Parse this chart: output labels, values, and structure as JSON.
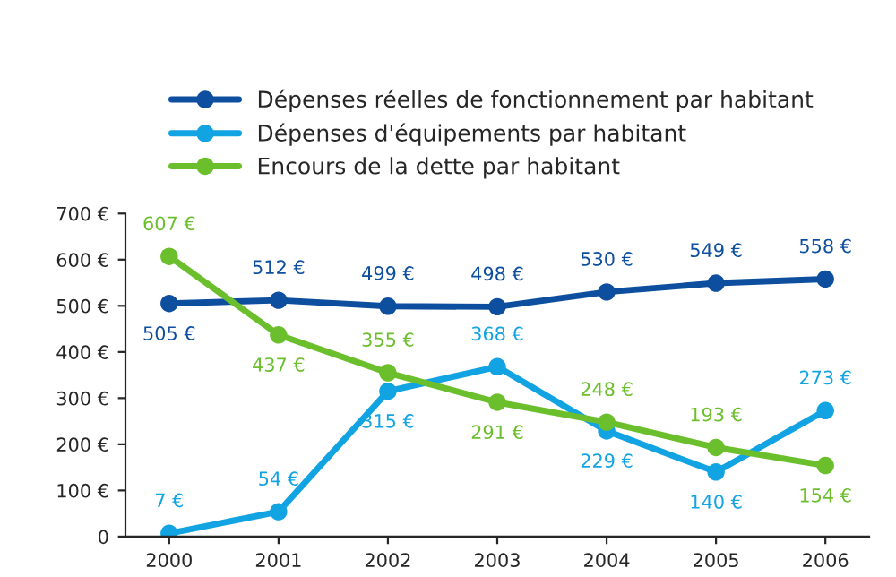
{
  "chart_data": {
    "type": "line",
    "categories": [
      "2000",
      "2001",
      "2002",
      "2003",
      "2004",
      "2005",
      "2006"
    ],
    "series": [
      {
        "name": "Dépenses réelles de fonctionnement par habitant",
        "color": "#0d4f9e",
        "values": [
          505,
          512,
          499,
          498,
          530,
          549,
          558
        ],
        "value_labels": [
          "505 €",
          "512 €",
          "499 €",
          "498 €",
          "530 €",
          "549 €",
          "558 €"
        ]
      },
      {
        "name": "Dépenses d'équipements par habitant",
        "color": "#12a3e3",
        "values": [
          7,
          54,
          315,
          368,
          229,
          140,
          273
        ],
        "value_labels": [
          "7 €",
          "54 €",
          "315 €",
          "368 €",
          "229 €",
          "140 €",
          "273 €"
        ]
      },
      {
        "name": "Encours de la dette par habitant",
        "color": "#6cbf2c",
        "values": [
          607,
          437,
          355,
          291,
          248,
          193,
          154
        ],
        "value_labels": [
          "607 €",
          "437 €",
          "355 €",
          "291 €",
          "248 €",
          "193 €",
          "154 €"
        ]
      }
    ],
    "ylim": [
      0,
      700
    ],
    "yticks": [
      {
        "value": 0,
        "label": "0"
      },
      {
        "value": 100,
        "label": "100 €"
      },
      {
        "value": 200,
        "label": "200 €"
      },
      {
        "value": 300,
        "label": "300 €"
      },
      {
        "value": 400,
        "label": "400 €"
      },
      {
        "value": 500,
        "label": "500 €"
      },
      {
        "value": 600,
        "label": "600 €"
      },
      {
        "value": 700,
        "label": "700 €"
      }
    ],
    "grid": false,
    "legend": "top",
    "marker": "circle",
    "line_style": "solid"
  }
}
